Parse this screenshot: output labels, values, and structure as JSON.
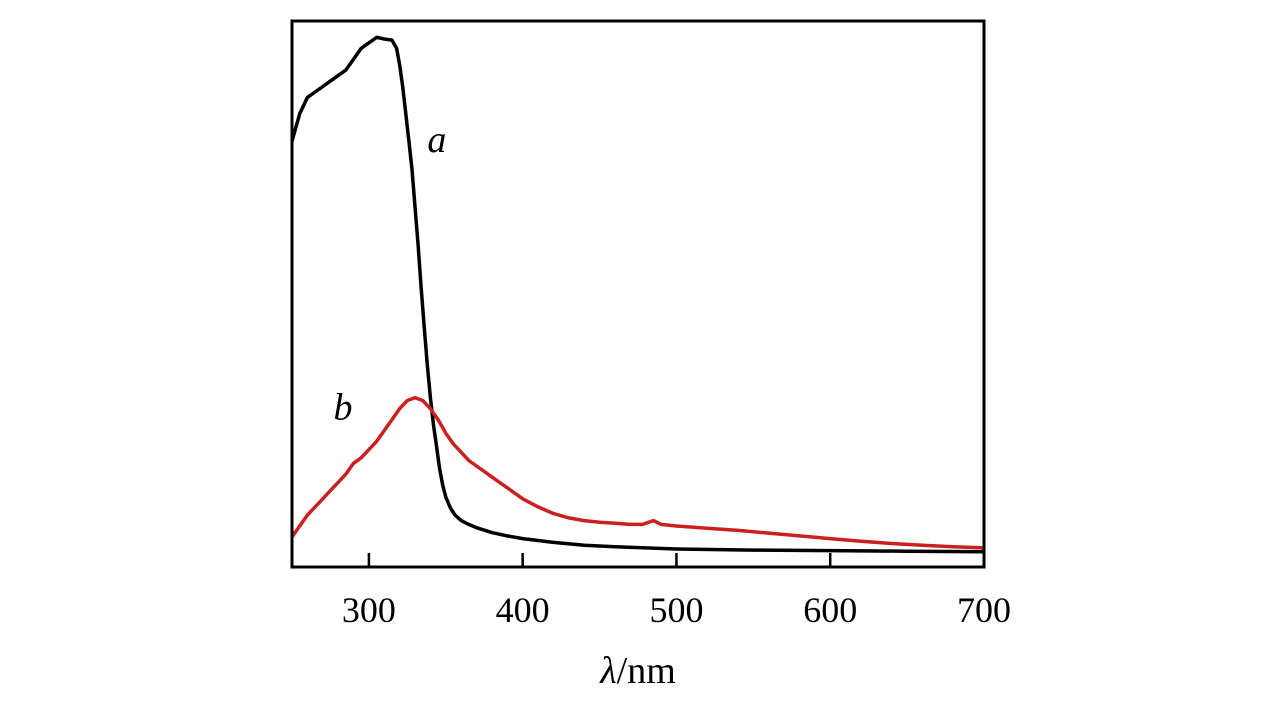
{
  "chart_data": {
    "type": "line",
    "xlabel_symbol": "λ",
    "xlabel_unit": "/nm",
    "xlim": [
      250,
      700
    ],
    "ylim": [
      0,
      1
    ],
    "x_ticks": [
      300,
      400,
      500,
      600,
      700
    ],
    "y_ticks_shown": false,
    "grid": false,
    "legend": "none",
    "series": [
      {
        "name": "a",
        "color": "#000000",
        "label_anchor": [
          338,
          0.76
        ],
        "points": [
          [
            250,
            0.78
          ],
          [
            252,
            0.8
          ],
          [
            255,
            0.83
          ],
          [
            260,
            0.86
          ],
          [
            265,
            0.87
          ],
          [
            270,
            0.88
          ],
          [
            275,
            0.89
          ],
          [
            280,
            0.9
          ],
          [
            285,
            0.91
          ],
          [
            290,
            0.93
          ],
          [
            295,
            0.95
          ],
          [
            300,
            0.96
          ],
          [
            305,
            0.97
          ],
          [
            310,
            0.967
          ],
          [
            315,
            0.965
          ],
          [
            318,
            0.95
          ],
          [
            320,
            0.92
          ],
          [
            322,
            0.88
          ],
          [
            324,
            0.83
          ],
          [
            326,
            0.78
          ],
          [
            328,
            0.73
          ],
          [
            330,
            0.66
          ],
          [
            332,
            0.59
          ],
          [
            334,
            0.51
          ],
          [
            336,
            0.44
          ],
          [
            338,
            0.37
          ],
          [
            340,
            0.31
          ],
          [
            342,
            0.26
          ],
          [
            344,
            0.22
          ],
          [
            346,
            0.18
          ],
          [
            348,
            0.15
          ],
          [
            350,
            0.128
          ],
          [
            353,
            0.108
          ],
          [
            356,
            0.095
          ],
          [
            360,
            0.085
          ],
          [
            365,
            0.078
          ],
          [
            370,
            0.072
          ],
          [
            380,
            0.063
          ],
          [
            390,
            0.057
          ],
          [
            400,
            0.052
          ],
          [
            420,
            0.045
          ],
          [
            440,
            0.04
          ],
          [
            460,
            0.037
          ],
          [
            480,
            0.035
          ],
          [
            500,
            0.033
          ],
          [
            550,
            0.031
          ],
          [
            600,
            0.03
          ],
          [
            650,
            0.029
          ],
          [
            700,
            0.028
          ]
        ]
      },
      {
        "name": "b",
        "color": "#cc1f1f",
        "label_anchor": [
          277,
          0.27
        ],
        "points": [
          [
            250,
            0.055
          ],
          [
            255,
            0.075
          ],
          [
            260,
            0.095
          ],
          [
            265,
            0.11
          ],
          [
            270,
            0.125
          ],
          [
            275,
            0.14
          ],
          [
            280,
            0.155
          ],
          [
            285,
            0.17
          ],
          [
            290,
            0.19
          ],
          [
            295,
            0.2
          ],
          [
            300,
            0.215
          ],
          [
            305,
            0.23
          ],
          [
            310,
            0.25
          ],
          [
            315,
            0.27
          ],
          [
            320,
            0.29
          ],
          [
            325,
            0.305
          ],
          [
            330,
            0.31
          ],
          [
            335,
            0.305
          ],
          [
            340,
            0.29
          ],
          [
            345,
            0.27
          ],
          [
            350,
            0.245
          ],
          [
            355,
            0.225
          ],
          [
            360,
            0.21
          ],
          [
            365,
            0.195
          ],
          [
            370,
            0.185
          ],
          [
            375,
            0.175
          ],
          [
            380,
            0.165
          ],
          [
            385,
            0.155
          ],
          [
            390,
            0.145
          ],
          [
            395,
            0.135
          ],
          [
            400,
            0.125
          ],
          [
            410,
            0.11
          ],
          [
            420,
            0.098
          ],
          [
            430,
            0.09
          ],
          [
            440,
            0.085
          ],
          [
            450,
            0.082
          ],
          [
            460,
            0.08
          ],
          [
            470,
            0.078
          ],
          [
            478,
            0.078
          ],
          [
            485,
            0.085
          ],
          [
            490,
            0.078
          ],
          [
            500,
            0.075
          ],
          [
            520,
            0.071
          ],
          [
            540,
            0.067
          ],
          [
            560,
            0.062
          ],
          [
            580,
            0.057
          ],
          [
            600,
            0.052
          ],
          [
            620,
            0.047
          ],
          [
            640,
            0.043
          ],
          [
            660,
            0.04
          ],
          [
            680,
            0.037
          ],
          [
            700,
            0.035
          ]
        ]
      }
    ]
  }
}
